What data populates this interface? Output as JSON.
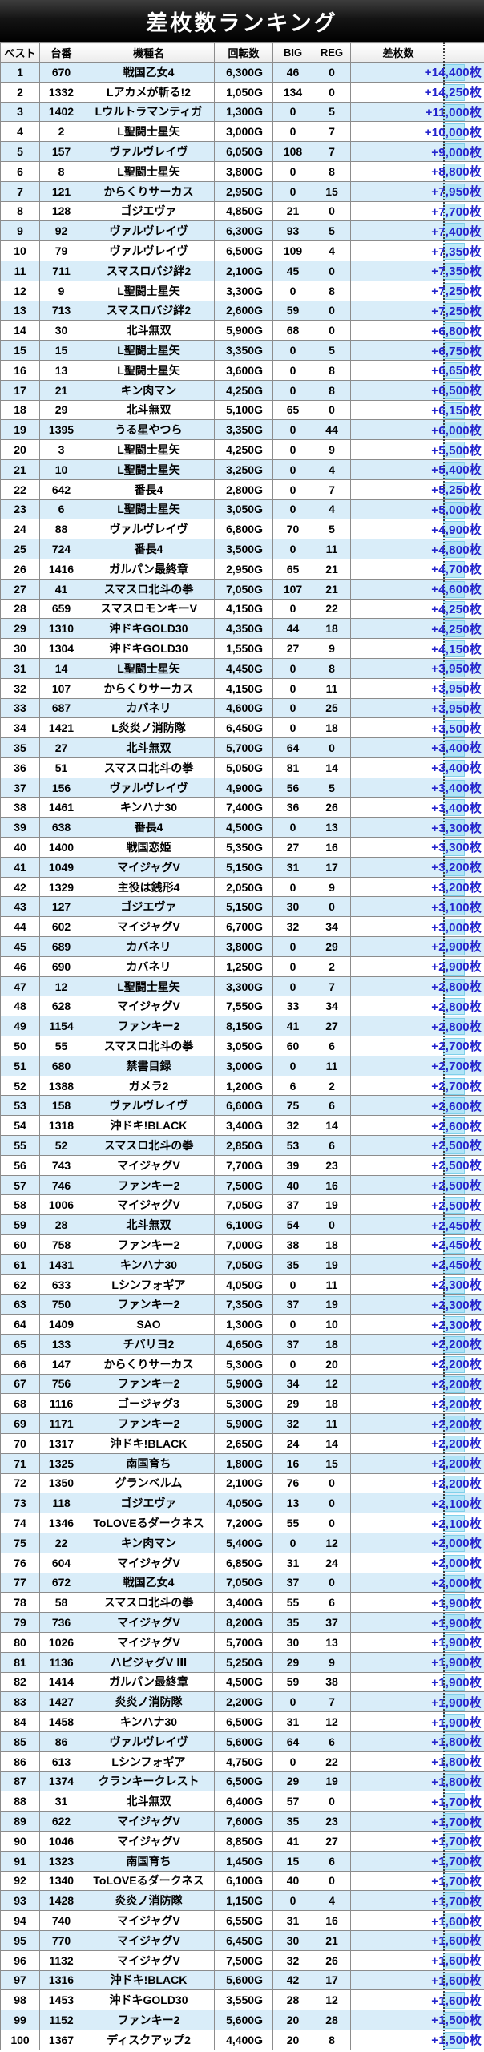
{
  "title": "差枚数ランキング",
  "colors": {
    "title_bg": "#000000",
    "title_text": "#ffffff",
    "row_alt_blue": "#d9edf9",
    "diff_text_blue": "#2424cd",
    "highlight_cyan": "#9eddf4",
    "border_gray": "#8c8c8c"
  },
  "table": {
    "columns": [
      "ベスト",
      "台番",
      "機種名",
      "回転数",
      "BIG",
      "REG",
      "差枚数"
    ],
    "col_keys": [
      "rank",
      "dai",
      "model",
      "spins",
      "big",
      "reg",
      "diff"
    ],
    "rows": [
      [
        "1",
        "670",
        "戦国乙女4",
        "6,300G",
        "46",
        "0",
        "+14,400枚"
      ],
      [
        "2",
        "1332",
        "Lアカメが斬る!2",
        "1,050G",
        "134",
        "0",
        "+14,250枚"
      ],
      [
        "3",
        "1402",
        "Lウルトラマンティガ",
        "1,300G",
        "0",
        "5",
        "+11,000枚"
      ],
      [
        "4",
        "2",
        "L聖闘士星矢",
        "3,000G",
        "0",
        "7",
        "+10,000枚"
      ],
      [
        "5",
        "157",
        "ヴァルヴレイヴ",
        "6,050G",
        "108",
        "7",
        "+9,000枚"
      ],
      [
        "6",
        "8",
        "L聖闘士星矢",
        "3,800G",
        "0",
        "8",
        "+8,800枚"
      ],
      [
        "7",
        "121",
        "からくりサーカス",
        "2,950G",
        "0",
        "15",
        "+7,950枚"
      ],
      [
        "8",
        "128",
        "ゴジエヴァ",
        "4,850G",
        "21",
        "0",
        "+7,700枚"
      ],
      [
        "9",
        "92",
        "ヴァルヴレイヴ",
        "6,300G",
        "93",
        "5",
        "+7,400枚"
      ],
      [
        "10",
        "79",
        "ヴァルヴレイヴ",
        "6,500G",
        "109",
        "4",
        "+7,350枚"
      ],
      [
        "11",
        "711",
        "スマスロバジ絆2",
        "2,100G",
        "45",
        "0",
        "+7,350枚"
      ],
      [
        "12",
        "9",
        "L聖闘士星矢",
        "3,300G",
        "0",
        "8",
        "+7,250枚"
      ],
      [
        "13",
        "713",
        "スマスロバジ絆2",
        "2,600G",
        "59",
        "0",
        "+7,250枚"
      ],
      [
        "14",
        "30",
        "北斗無双",
        "5,900G",
        "68",
        "0",
        "+6,800枚"
      ],
      [
        "15",
        "15",
        "L聖闘士星矢",
        "3,350G",
        "0",
        "5",
        "+6,750枚"
      ],
      [
        "16",
        "13",
        "L聖闘士星矢",
        "3,600G",
        "0",
        "8",
        "+6,650枚"
      ],
      [
        "17",
        "21",
        "キン肉マン",
        "4,250G",
        "0",
        "8",
        "+6,500枚"
      ],
      [
        "18",
        "29",
        "北斗無双",
        "5,100G",
        "65",
        "0",
        "+6,150枚"
      ],
      [
        "19",
        "1395",
        "うる星やつら",
        "3,350G",
        "0",
        "44",
        "+6,000枚"
      ],
      [
        "20",
        "3",
        "L聖闘士星矢",
        "4,250G",
        "0",
        "9",
        "+5,500枚"
      ],
      [
        "21",
        "10",
        "L聖闘士星矢",
        "3,250G",
        "0",
        "4",
        "+5,400枚"
      ],
      [
        "22",
        "642",
        "番長4",
        "2,800G",
        "0",
        "7",
        "+5,250枚"
      ],
      [
        "23",
        "6",
        "L聖闘士星矢",
        "3,050G",
        "0",
        "4",
        "+5,000枚"
      ],
      [
        "24",
        "88",
        "ヴァルヴレイヴ",
        "6,800G",
        "70",
        "5",
        "+4,900枚"
      ],
      [
        "25",
        "724",
        "番長4",
        "3,500G",
        "0",
        "11",
        "+4,800枚"
      ],
      [
        "26",
        "1416",
        "ガルパン最終章",
        "2,950G",
        "65",
        "21",
        "+4,700枚"
      ],
      [
        "27",
        "41",
        "スマスロ北斗の拳",
        "7,050G",
        "107",
        "21",
        "+4,600枚"
      ],
      [
        "28",
        "659",
        "スマスロモンキーV",
        "4,150G",
        "0",
        "22",
        "+4,250枚"
      ],
      [
        "29",
        "1310",
        "沖ドキGOLD30",
        "4,350G",
        "44",
        "18",
        "+4,250枚"
      ],
      [
        "30",
        "1304",
        "沖ドキGOLD30",
        "1,550G",
        "27",
        "9",
        "+4,150枚"
      ],
      [
        "31",
        "14",
        "L聖闘士星矢",
        "4,450G",
        "0",
        "8",
        "+3,950枚"
      ],
      [
        "32",
        "107",
        "からくりサーカス",
        "4,150G",
        "0",
        "11",
        "+3,950枚"
      ],
      [
        "33",
        "687",
        "カバネリ",
        "4,600G",
        "0",
        "25",
        "+3,950枚"
      ],
      [
        "34",
        "1421",
        "L炎炎ノ消防隊",
        "6,450G",
        "0",
        "18",
        "+3,500枚"
      ],
      [
        "35",
        "27",
        "北斗無双",
        "5,700G",
        "64",
        "0",
        "+3,400枚"
      ],
      [
        "36",
        "51",
        "スマスロ北斗の拳",
        "5,050G",
        "81",
        "14",
        "+3,400枚"
      ],
      [
        "37",
        "156",
        "ヴァルヴレイヴ",
        "4,900G",
        "56",
        "5",
        "+3,400枚"
      ],
      [
        "38",
        "1461",
        "キンハナ30",
        "7,400G",
        "36",
        "26",
        "+3,400枚"
      ],
      [
        "39",
        "638",
        "番長4",
        "4,500G",
        "0",
        "13",
        "+3,300枚"
      ],
      [
        "40",
        "1400",
        "戦国恋姫",
        "5,350G",
        "27",
        "16",
        "+3,300枚"
      ],
      [
        "41",
        "1049",
        "マイジャグV",
        "5,150G",
        "31",
        "17",
        "+3,200枚"
      ],
      [
        "42",
        "1329",
        "主役は銭形4",
        "2,050G",
        "0",
        "9",
        "+3,200枚"
      ],
      [
        "43",
        "127",
        "ゴジエヴァ",
        "5,150G",
        "30",
        "0",
        "+3,100枚"
      ],
      [
        "44",
        "602",
        "マイジャグV",
        "6,700G",
        "32",
        "34",
        "+3,000枚"
      ],
      [
        "45",
        "689",
        "カバネリ",
        "3,800G",
        "0",
        "29",
        "+2,900枚"
      ],
      [
        "46",
        "690",
        "カバネリ",
        "1,250G",
        "0",
        "2",
        "+2,900枚"
      ],
      [
        "47",
        "12",
        "L聖闘士星矢",
        "3,300G",
        "0",
        "7",
        "+2,800枚"
      ],
      [
        "48",
        "628",
        "マイジャグV",
        "7,550G",
        "33",
        "34",
        "+2,800枚"
      ],
      [
        "49",
        "1154",
        "ファンキー2",
        "8,150G",
        "41",
        "27",
        "+2,800枚"
      ],
      [
        "50",
        "55",
        "スマスロ北斗の拳",
        "3,050G",
        "60",
        "6",
        "+2,700枚"
      ],
      [
        "51",
        "680",
        "禁書目録",
        "3,000G",
        "0",
        "11",
        "+2,700枚"
      ],
      [
        "52",
        "1388",
        "ガメラ2",
        "1,200G",
        "6",
        "2",
        "+2,700枚"
      ],
      [
        "53",
        "158",
        "ヴァルヴレイヴ",
        "6,600G",
        "75",
        "6",
        "+2,600枚"
      ],
      [
        "54",
        "1318",
        "沖ドキ!BLACK",
        "3,400G",
        "32",
        "14",
        "+2,600枚"
      ],
      [
        "55",
        "52",
        "スマスロ北斗の拳",
        "2,850G",
        "53",
        "6",
        "+2,500枚"
      ],
      [
        "56",
        "743",
        "マイジャグV",
        "7,700G",
        "39",
        "23",
        "+2,500枚"
      ],
      [
        "57",
        "746",
        "ファンキー2",
        "7,500G",
        "40",
        "16",
        "+2,500枚"
      ],
      [
        "58",
        "1006",
        "マイジャグV",
        "7,050G",
        "37",
        "19",
        "+2,500枚"
      ],
      [
        "59",
        "28",
        "北斗無双",
        "6,100G",
        "54",
        "0",
        "+2,450枚"
      ],
      [
        "60",
        "758",
        "ファンキー2",
        "7,000G",
        "38",
        "18",
        "+2,450枚"
      ],
      [
        "61",
        "1431",
        "キンハナ30",
        "7,050G",
        "35",
        "19",
        "+2,450枚"
      ],
      [
        "62",
        "633",
        "Lシンフォギア",
        "4,050G",
        "0",
        "11",
        "+2,300枚"
      ],
      [
        "63",
        "750",
        "ファンキー2",
        "7,350G",
        "37",
        "19",
        "+2,300枚"
      ],
      [
        "64",
        "1409",
        "SAO",
        "1,300G",
        "0",
        "10",
        "+2,300枚"
      ],
      [
        "65",
        "133",
        "チバリヨ2",
        "4,650G",
        "37",
        "18",
        "+2,200枚"
      ],
      [
        "66",
        "147",
        "からくりサーカス",
        "5,300G",
        "0",
        "20",
        "+2,200枚"
      ],
      [
        "67",
        "756",
        "ファンキー2",
        "5,900G",
        "34",
        "12",
        "+2,200枚"
      ],
      [
        "68",
        "1116",
        "ゴージャグ3",
        "5,300G",
        "29",
        "18",
        "+2,200枚"
      ],
      [
        "69",
        "1171",
        "ファンキー2",
        "5,900G",
        "32",
        "11",
        "+2,200枚"
      ],
      [
        "70",
        "1317",
        "沖ドキ!BLACK",
        "2,650G",
        "24",
        "14",
        "+2,200枚"
      ],
      [
        "71",
        "1325",
        "南国育ち",
        "1,800G",
        "16",
        "15",
        "+2,200枚"
      ],
      [
        "72",
        "1350",
        "グランベルム",
        "2,100G",
        "76",
        "0",
        "+2,200枚"
      ],
      [
        "73",
        "118",
        "ゴジエヴァ",
        "4,050G",
        "13",
        "0",
        "+2,100枚"
      ],
      [
        "74",
        "1346",
        "ToLOVEるダークネス",
        "7,200G",
        "55",
        "0",
        "+2,100枚"
      ],
      [
        "75",
        "22",
        "キン肉マン",
        "5,400G",
        "0",
        "12",
        "+2,000枚"
      ],
      [
        "76",
        "604",
        "マイジャグV",
        "6,850G",
        "31",
        "24",
        "+2,000枚"
      ],
      [
        "77",
        "672",
        "戦国乙女4",
        "7,050G",
        "37",
        "0",
        "+2,000枚"
      ],
      [
        "78",
        "58",
        "スマスロ北斗の拳",
        "3,400G",
        "55",
        "6",
        "+1,900枚"
      ],
      [
        "79",
        "736",
        "マイジャグV",
        "8,200G",
        "35",
        "37",
        "+1,900枚"
      ],
      [
        "80",
        "1026",
        "マイジャグV",
        "5,700G",
        "30",
        "13",
        "+1,900枚"
      ],
      [
        "81",
        "1136",
        "ハピジャグV Ⅲ",
        "5,250G",
        "29",
        "9",
        "+1,900枚"
      ],
      [
        "82",
        "1414",
        "ガルパン最終章",
        "4,500G",
        "59",
        "38",
        "+1,900枚"
      ],
      [
        "83",
        "1427",
        "炎炎ノ消防隊",
        "2,200G",
        "0",
        "7",
        "+1,900枚"
      ],
      [
        "84",
        "1458",
        "キンハナ30",
        "6,500G",
        "31",
        "12",
        "+1,900枚"
      ],
      [
        "85",
        "86",
        "ヴァルヴレイヴ",
        "5,600G",
        "64",
        "6",
        "+1,800枚"
      ],
      [
        "86",
        "613",
        "Lシンフォギア",
        "4,750G",
        "0",
        "22",
        "+1,800枚"
      ],
      [
        "87",
        "1374",
        "クランキークレスト",
        "6,500G",
        "29",
        "19",
        "+1,800枚"
      ],
      [
        "88",
        "31",
        "北斗無双",
        "6,400G",
        "57",
        "0",
        "+1,700枚"
      ],
      [
        "89",
        "622",
        "マイジャグV",
        "7,600G",
        "35",
        "23",
        "+1,700枚"
      ],
      [
        "90",
        "1046",
        "マイジャグV",
        "8,850G",
        "41",
        "27",
        "+1,700枚"
      ],
      [
        "91",
        "1323",
        "南国育ち",
        "1,450G",
        "15",
        "6",
        "+1,700枚"
      ],
      [
        "92",
        "1340",
        "ToLOVEるダークネス",
        "6,100G",
        "40",
        "0",
        "+1,700枚"
      ],
      [
        "93",
        "1428",
        "炎炎ノ消防隊",
        "1,150G",
        "0",
        "4",
        "+1,700枚"
      ],
      [
        "94",
        "740",
        "マイジャグV",
        "6,550G",
        "31",
        "16",
        "+1,600枚"
      ],
      [
        "95",
        "770",
        "マイジャグV",
        "6,450G",
        "30",
        "21",
        "+1,600枚"
      ],
      [
        "96",
        "1132",
        "マイジャグV",
        "7,500G",
        "32",
        "26",
        "+1,600枚"
      ],
      [
        "97",
        "1316",
        "沖ドキ!BLACK",
        "5,600G",
        "42",
        "17",
        "+1,600枚"
      ],
      [
        "98",
        "1453",
        "沖ドキGOLD30",
        "3,550G",
        "28",
        "12",
        "+1,600枚"
      ],
      [
        "99",
        "1152",
        "ファンキー2",
        "5,600G",
        "20",
        "28",
        "+1,500枚"
      ],
      [
        "100",
        "1367",
        "ディスクアップ2",
        "4,400G",
        "20",
        "8",
        "+1,500枚"
      ]
    ]
  }
}
